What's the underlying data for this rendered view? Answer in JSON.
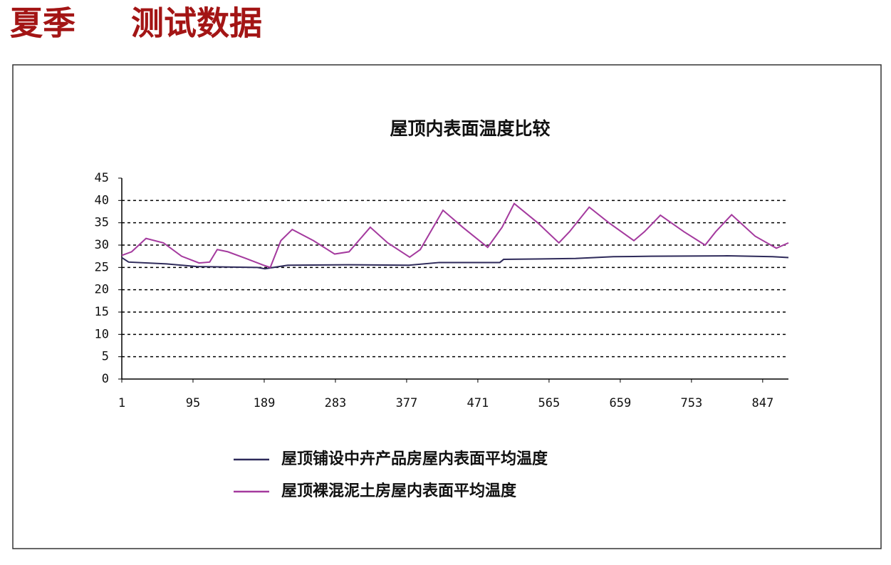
{
  "header": {
    "title": [
      "夏季",
      "测试数据"
    ]
  },
  "chart_data": {
    "type": "line",
    "title": "屋顶内表面温度比较",
    "xlim": [
      1,
      881
    ],
    "xticks": [
      1,
      95,
      189,
      283,
      377,
      471,
      565,
      659,
      753,
      847
    ],
    "ylim": [
      0,
      45
    ],
    "yticks": [
      0,
      5,
      10,
      15,
      20,
      25,
      30,
      35,
      40,
      45
    ],
    "grid": true,
    "series": [
      {
        "name": "屋顶铺设中卉产品房屋内表面平均温度",
        "color": "#2e2a5a",
        "x": [
          1,
          10,
          60,
          100,
          180,
          190,
          220,
          300,
          380,
          420,
          500,
          505,
          600,
          650,
          700,
          800,
          860,
          881
        ],
        "values": [
          27.2,
          26.2,
          25.8,
          25.2,
          25,
          24.7,
          25.5,
          25.6,
          25.5,
          26.1,
          26.1,
          26.8,
          27,
          27.4,
          27.5,
          27.6,
          27.4,
          27.2
        ]
      },
      {
        "name": "屋顶裸混泥土房屋内表面平均温度",
        "color": "#a43a9e",
        "x": [
          1,
          14,
          33,
          56,
          80,
          103,
          117,
          127,
          141,
          165,
          188,
          197,
          211,
          226,
          254,
          282,
          301,
          329,
          352,
          381,
          395,
          425,
          451,
          484,
          503,
          519,
          550,
          578,
          592,
          618,
          644,
          677,
          691,
          712,
          743,
          771,
          785,
          806,
          837,
          865,
          881
        ],
        "values": [
          27.7,
          28.5,
          31.5,
          30.5,
          27.5,
          26,
          26.2,
          29,
          28.5,
          27,
          25.5,
          25,
          31,
          33.5,
          31,
          28,
          28.5,
          34,
          30.5,
          27.3,
          29,
          37.8,
          34,
          29.5,
          34,
          39.3,
          35,
          30.5,
          33,
          38.5,
          35,
          31,
          33,
          36.7,
          33,
          30,
          33,
          36.8,
          32,
          29.3,
          30.5
        ]
      }
    ]
  }
}
